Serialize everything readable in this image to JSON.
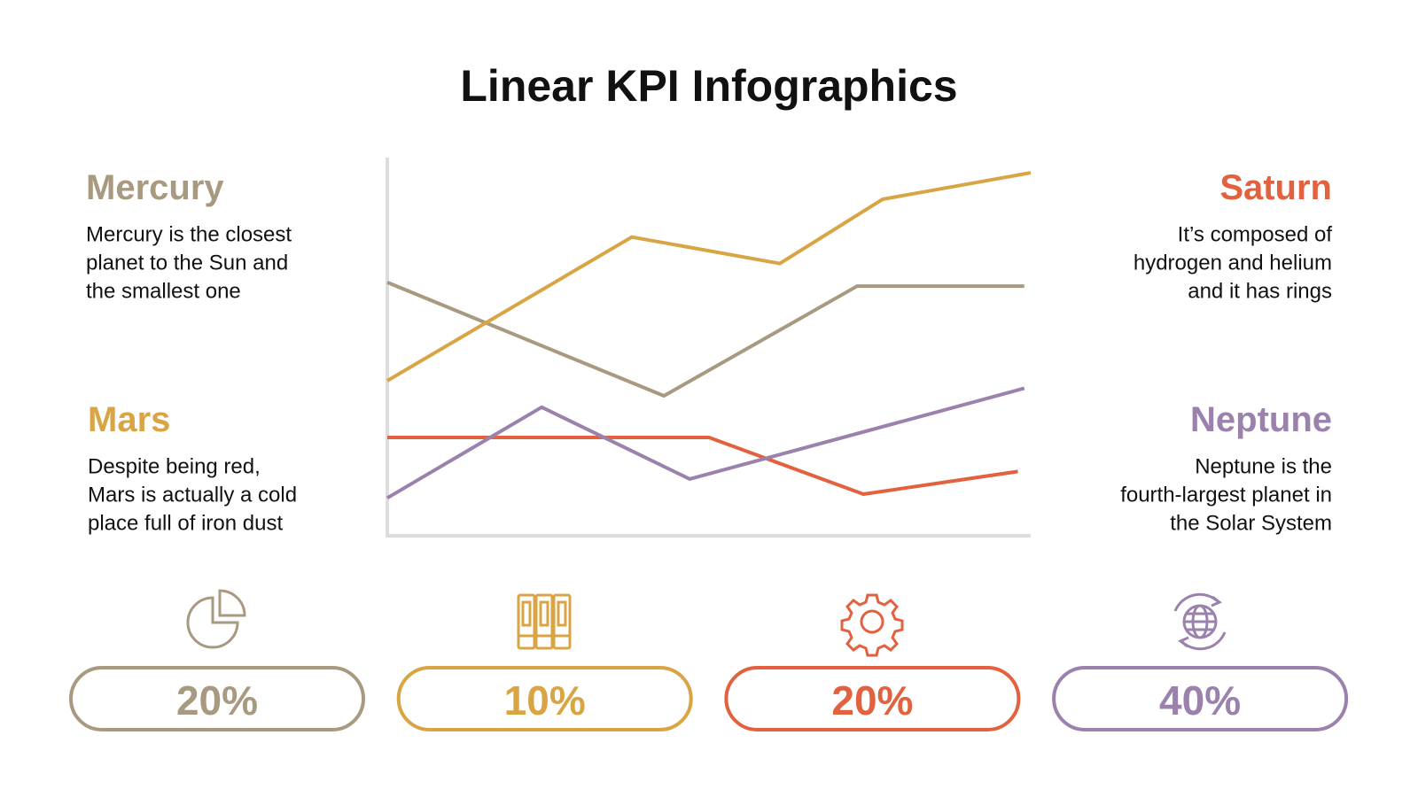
{
  "title": "Linear KPI Infographics",
  "panels": [
    {
      "title": "Mercury",
      "color": "#a89a80",
      "lines": [
        "Mercury is the closest",
        "planet to the Sun and",
        "the smallest one"
      ]
    },
    {
      "title": "Mars",
      "color": "#d9a444",
      "lines": [
        "Despite being red,",
        "Mars is actually a cold",
        "place full of iron dust"
      ]
    },
    {
      "title": "Saturn",
      "color": "#e2613f",
      "lines": [
        "It’s composed of",
        "hydrogen and helium",
        "and it has rings"
      ]
    },
    {
      "title": "Neptune",
      "color": "#9b82ad",
      "lines": [
        "Neptune is the",
        "fourth-largest planet in",
        "the Solar System"
      ]
    }
  ],
  "chart_data": {
    "type": "line",
    "xlim": [
      0,
      100
    ],
    "ylim": [
      0,
      100
    ],
    "series": [
      {
        "color": "#a89a80",
        "x": [
          0,
          43,
          73,
          99
        ],
        "values": [
          67,
          37,
          66,
          66
        ]
      },
      {
        "color": "#d9a444",
        "x": [
          0,
          38,
          61,
          77,
          100
        ],
        "values": [
          41,
          79,
          72,
          89,
          96
        ]
      },
      {
        "color": "#e2613f",
        "x": [
          0,
          50,
          74,
          98
        ],
        "values": [
          26,
          26,
          11,
          17
        ]
      },
      {
        "color": "#9b82ad",
        "x": [
          0,
          24,
          47,
          99
        ],
        "values": [
          10,
          34,
          15,
          39
        ]
      }
    ]
  },
  "kpis": [
    {
      "label": "20%",
      "color": "#a89a80"
    },
    {
      "label": "10%",
      "color": "#d9a444"
    },
    {
      "label": "20%",
      "color": "#e2613f"
    },
    {
      "label": "40%",
      "color": "#9b82ad"
    }
  ]
}
